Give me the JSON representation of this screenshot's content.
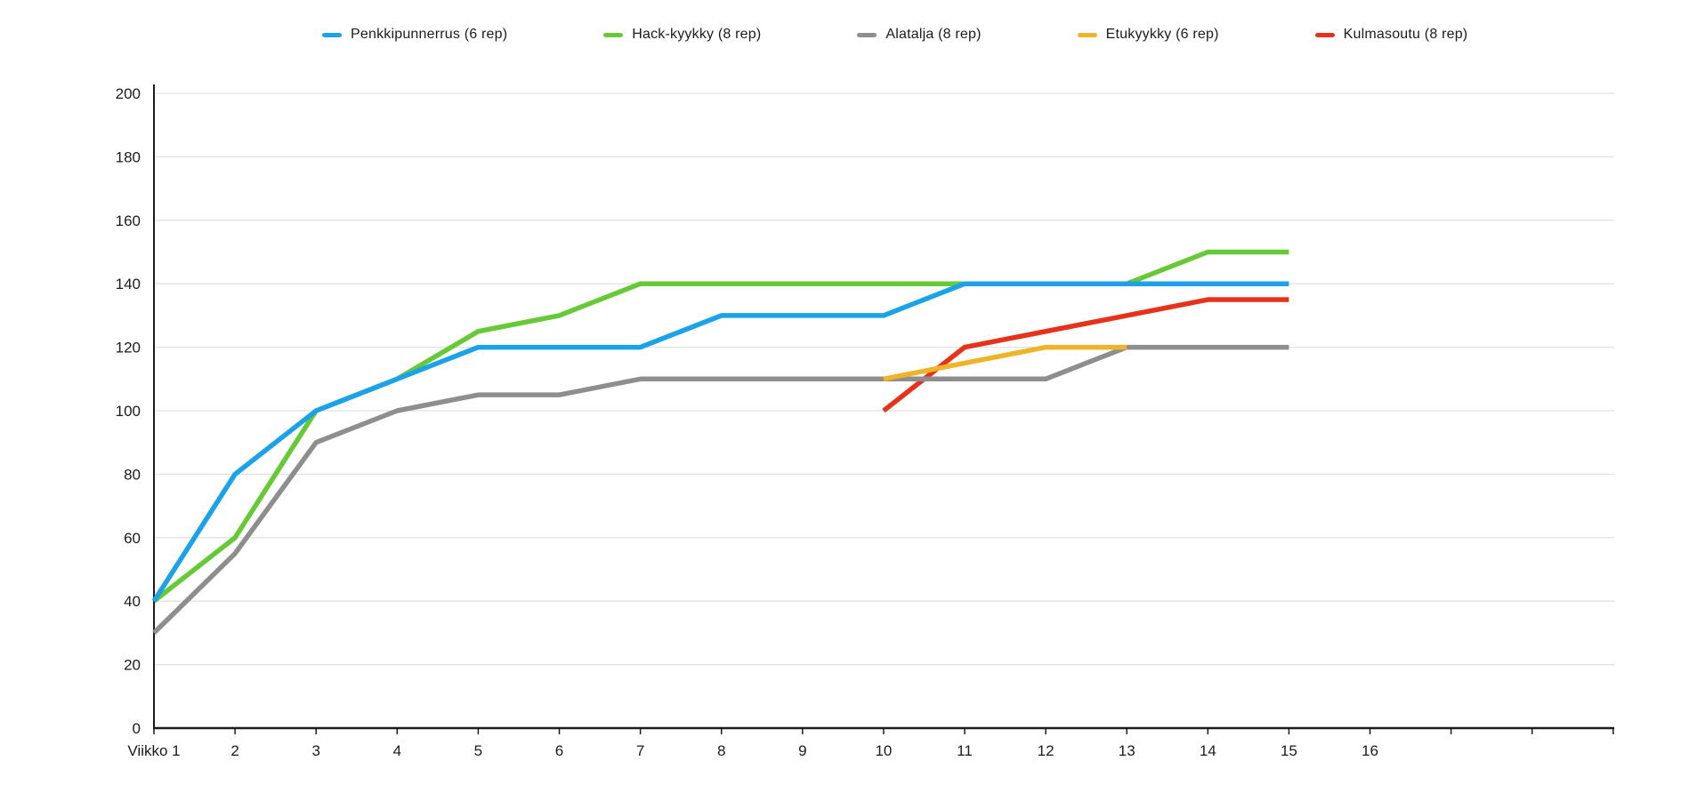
{
  "chart_data": {
    "type": "line",
    "title": "",
    "xlabel": "",
    "ylabel": "",
    "ylim": [
      0,
      200
    ],
    "y_step": 20,
    "grid": "horizontal",
    "legend_position": "top",
    "x_axis": {
      "tick_labels": [
        "Viikko 1",
        "2",
        "3",
        "4",
        "5",
        "6",
        "7",
        "8",
        "9",
        "10",
        "11",
        "12",
        "13",
        "14",
        "15",
        "16"
      ],
      "unlabeled_extra_ticks": 3
    },
    "series": [
      {
        "name": "Penkkipunnerrus (6 rep)",
        "color": "#1BA2E8",
        "x": [
          1,
          2,
          3,
          4,
          5,
          6,
          7,
          8,
          9,
          10,
          11,
          12,
          13,
          14,
          15
        ],
        "values": [
          40,
          80,
          100,
          110,
          120,
          120,
          120,
          130,
          130,
          130,
          140,
          140,
          140,
          140,
          140
        ]
      },
      {
        "name": "Hack-kyykky (8 rep)",
        "color": "#65CA35",
        "x": [
          1,
          2,
          3,
          4,
          5,
          6,
          7,
          8,
          9,
          10,
          11,
          12,
          13,
          14,
          15
        ],
        "values": [
          40,
          60,
          100,
          110,
          125,
          130,
          140,
          140,
          140,
          140,
          140,
          140,
          140,
          150,
          150
        ]
      },
      {
        "name": "Alatalja (8 rep)",
        "color": "#8E8E8E",
        "x": [
          1,
          2,
          3,
          4,
          5,
          6,
          7,
          8,
          9,
          10,
          11,
          12,
          13,
          14,
          15
        ],
        "values": [
          30,
          55,
          90,
          100,
          105,
          105,
          110,
          110,
          110,
          110,
          110,
          110,
          120,
          120,
          120
        ]
      },
      {
        "name": "Etukyykky (6 rep)",
        "color": "#F0B429",
        "x": [
          10,
          11,
          12,
          13
        ],
        "values": [
          110,
          115,
          120,
          120
        ]
      },
      {
        "name": "Kulmasoutu (8 rep)",
        "color": "#E7321B",
        "x": [
          10,
          11,
          12,
          13,
          14,
          15
        ],
        "values": [
          100,
          120,
          125,
          130,
          135,
          135
        ]
      }
    ],
    "draw_order": [
      4,
      2,
      3,
      1,
      0
    ],
    "axis_color": "#1c1c1c",
    "gridline_color": "#E2E2E2"
  }
}
